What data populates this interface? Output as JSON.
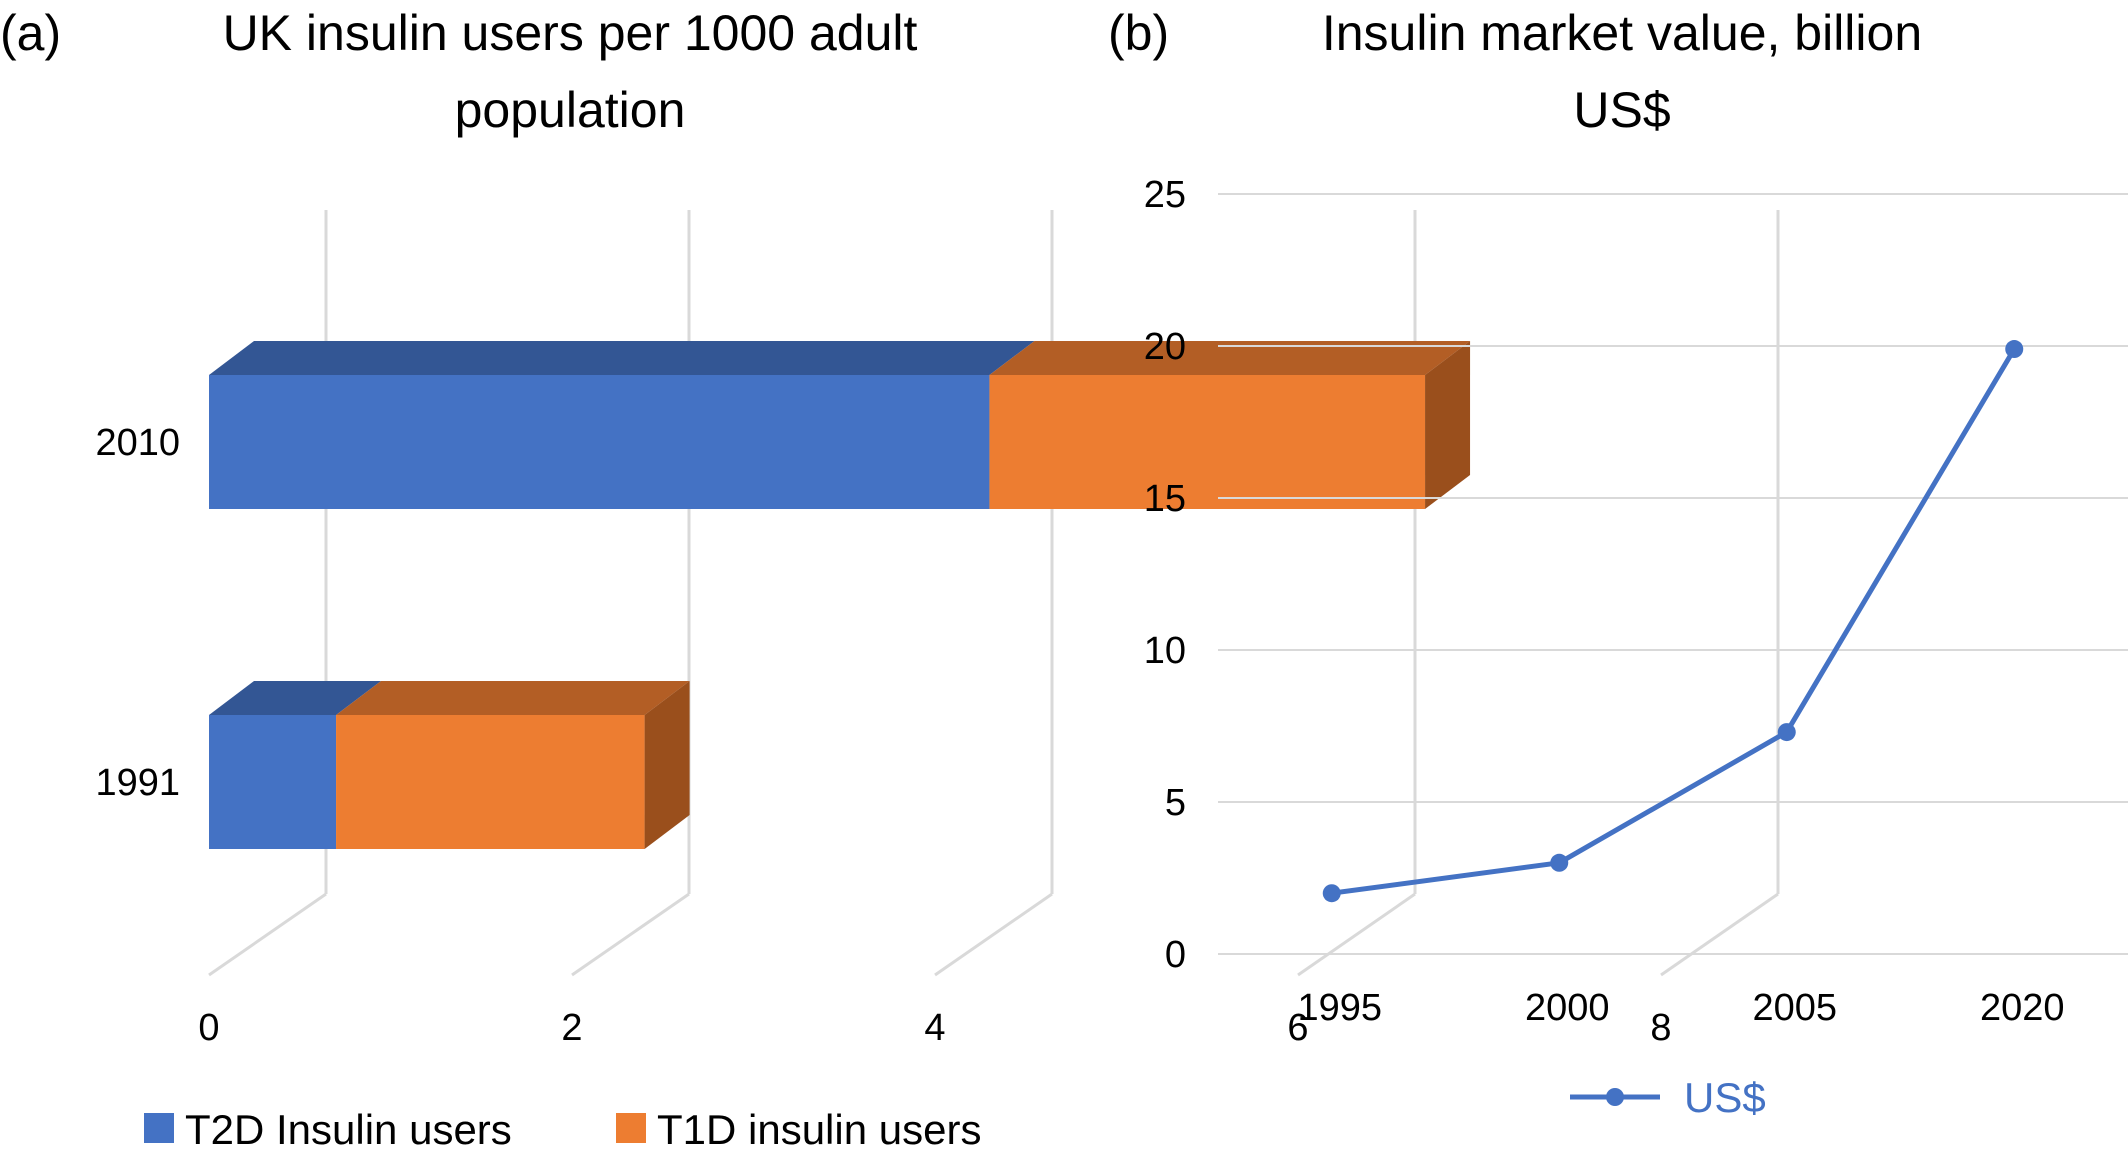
{
  "chart_data": [
    {
      "panel_label": "(a)",
      "type": "bar",
      "orientation": "horizontal",
      "stacked": true,
      "three_d": true,
      "title": "UK insulin users per 1000 adult population",
      "title_lines": [
        "UK insulin users per 1000 adult",
        "population"
      ],
      "categories": [
        "1991",
        "2010"
      ],
      "series": [
        {
          "name": "T2D Insulin users",
          "values": [
            0.7,
            4.3
          ]
        },
        {
          "name": "T1D insulin users",
          "values": [
            1.7,
            2.4
          ]
        }
      ],
      "xticks": [
        "0",
        "2",
        "4",
        "6",
        "8"
      ],
      "xlim": [
        0,
        8
      ],
      "grid": true,
      "legend_position": "bottom",
      "xlabel": "",
      "ylabel": ""
    },
    {
      "panel_label": "(b)",
      "type": "line",
      "title": "Insulin market value, billion US$",
      "title_lines": [
        "Insulin market value, billion",
        "US$"
      ],
      "x": [
        "1995",
        "2000",
        "2005",
        "2020"
      ],
      "series": [
        {
          "name": "US$",
          "values": [
            2,
            3,
            7.3,
            19.9
          ]
        }
      ],
      "yticks": [
        "0",
        "5",
        "10",
        "15",
        "20",
        "25"
      ],
      "ylim": [
        0,
        25
      ],
      "grid": true,
      "legend_position": "bottom",
      "xlabel": "",
      "ylabel": ""
    }
  ],
  "colors": {
    "t2d_front": "#4472c4",
    "t2d_top": "#335694",
    "t1d_front": "#ed7d31",
    "t1d_top": "#b35e25",
    "t1d_side": "#9a4f1c",
    "line": "#4472c4",
    "legend_text_b": "#4472c4",
    "grid": "#d9d9d9"
  }
}
